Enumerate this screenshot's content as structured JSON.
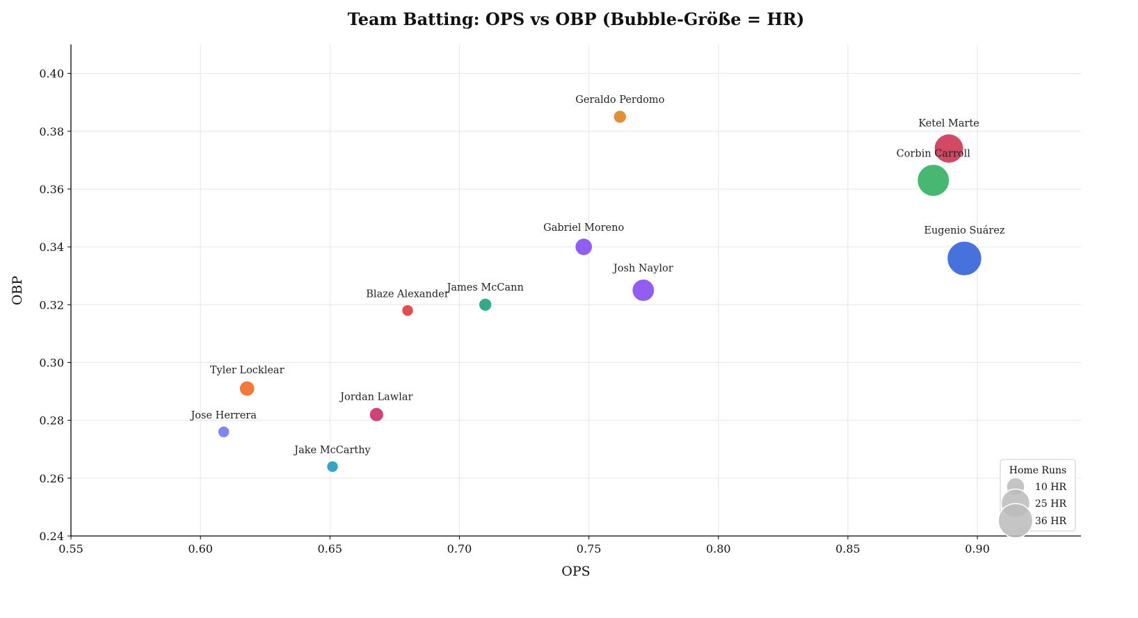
{
  "chart_data": {
    "type": "scatter",
    "title": "Team Batting: OPS vs OBP  (Bubble-Größe = HR)",
    "xlabel": "OPS",
    "ylabel": "OBP",
    "xlim": [
      0.55,
      0.94
    ],
    "ylim": [
      0.24,
      0.41
    ],
    "xticks": [
      "0.55",
      "0.60",
      "0.65",
      "0.70",
      "0.75",
      "0.80",
      "0.85",
      "0.90"
    ],
    "yticks": [
      "0.24",
      "0.26",
      "0.28",
      "0.30",
      "0.32",
      "0.34",
      "0.36",
      "0.38",
      "0.40"
    ],
    "grid": true,
    "points": [
      {
        "name": "Geraldo Perdomo",
        "ops": 0.762,
        "obp": 0.385,
        "hr": 5,
        "color": "#e08a2c"
      },
      {
        "name": "Ketel Marte",
        "ops": 0.889,
        "obp": 0.374,
        "hr": 26,
        "color": "#cf3f5a"
      },
      {
        "name": "Corbin Carroll",
        "ops": 0.883,
        "obp": 0.363,
        "hr": 31,
        "color": "#3db36a"
      },
      {
        "name": "Eugenio Suárez",
        "ops": 0.895,
        "obp": 0.336,
        "hr": 36,
        "color": "#3e6ad9"
      },
      {
        "name": "Gabriel Moreno",
        "ops": 0.748,
        "obp": 0.34,
        "hr": 9,
        "color": "#8b55f0"
      },
      {
        "name": "Josh Naylor",
        "ops": 0.771,
        "obp": 0.325,
        "hr": 15,
        "color": "#8b55f0"
      },
      {
        "name": "James McCann",
        "ops": 0.71,
        "obp": 0.32,
        "hr": 5,
        "color": "#2aa580"
      },
      {
        "name": "Blaze Alexander",
        "ops": 0.68,
        "obp": 0.318,
        "hr": 4,
        "color": "#e04545"
      },
      {
        "name": "Tyler Locklear",
        "ops": 0.618,
        "obp": 0.291,
        "hr": 7,
        "color": "#f07232"
      },
      {
        "name": "Jordan Lawlar",
        "ops": 0.668,
        "obp": 0.282,
        "hr": 6,
        "color": "#cc3a70"
      },
      {
        "name": "Jose Herrera",
        "ops": 0.609,
        "obp": 0.276,
        "hr": 4,
        "color": "#7b7ff0"
      },
      {
        "name": "Jake McCarthy",
        "ops": 0.651,
        "obp": 0.264,
        "hr": 4,
        "color": "#2aa0c0"
      }
    ],
    "legend": {
      "title": "Home Runs",
      "position": "lower-right",
      "entries": [
        {
          "label": "10 HR",
          "hr": 10
        },
        {
          "label": "25 HR",
          "hr": 25
        },
        {
          "label": "36 HR",
          "hr": 36
        }
      ]
    }
  }
}
